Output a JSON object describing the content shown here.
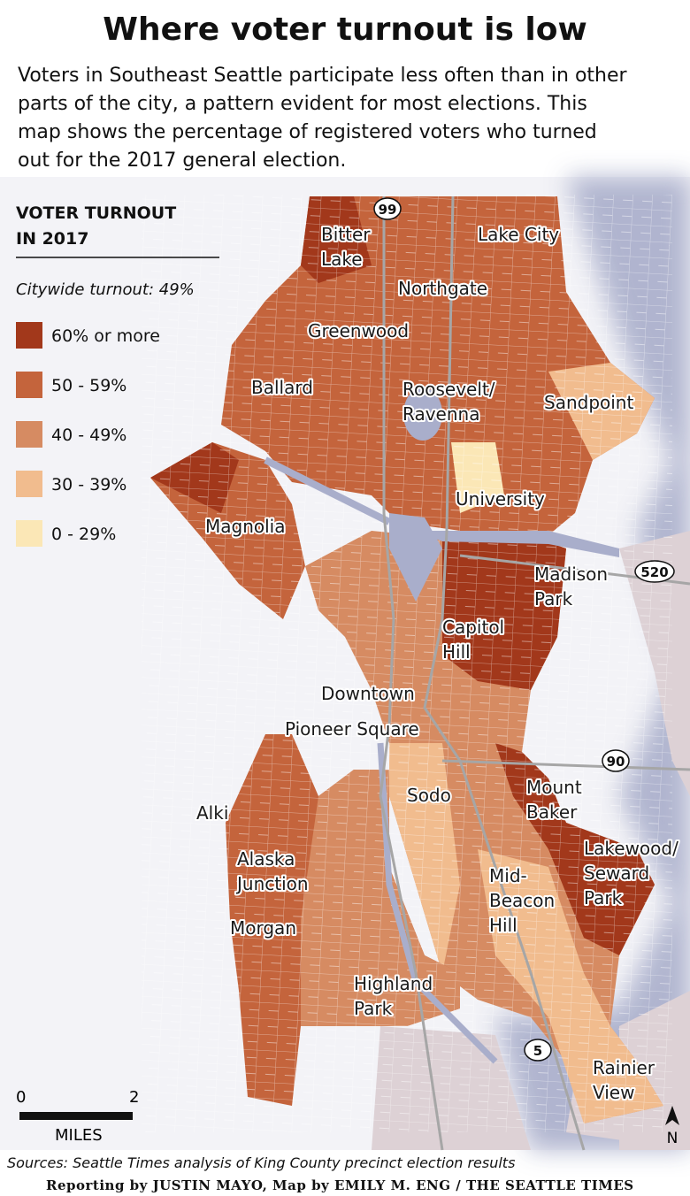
{
  "header": {
    "title": "Where voter turnout is low",
    "subtitle": [
      "Voters in Southeast Seattle participate less often than in other",
      "parts of the city, a pattern evident for most elections. This",
      "map shows the percentage of registered voters who turned",
      "out for the 2017 general election."
    ]
  },
  "legend": {
    "title": [
      "VOTER TURNOUT",
      "IN 2017"
    ],
    "note": "Citywide turnout: 49%",
    "items": [
      {
        "label": "60% or more",
        "color": "#a2381b"
      },
      {
        "label": "50 - 59%",
        "color": "#c4643c"
      },
      {
        "label": "40 - 49%",
        "color": "#d68b62"
      },
      {
        "label": "30 - 39%",
        "color": "#f1bc8e"
      },
      {
        "label": "0 - 29%",
        "color": "#fbe7b6"
      }
    ]
  },
  "map": {
    "labels": [
      {
        "lines": [
          "Bitter",
          "Lake"
        ]
      },
      {
        "lines": [
          "Lake City"
        ]
      },
      {
        "lines": [
          "Northgate"
        ]
      },
      {
        "lines": [
          "Greenwood"
        ]
      },
      {
        "lines": [
          "Ballard"
        ]
      },
      {
        "lines": [
          "Roosevelt/",
          "Ravenna"
        ]
      },
      {
        "lines": [
          "Sandpoint"
        ]
      },
      {
        "lines": [
          "University"
        ]
      },
      {
        "lines": [
          "Magnolia"
        ]
      },
      {
        "lines": [
          "Madison",
          "Park"
        ]
      },
      {
        "lines": [
          "Capitol",
          "Hill"
        ]
      },
      {
        "lines": [
          "Downtown"
        ]
      },
      {
        "lines": [
          "Pioneer Square"
        ]
      },
      {
        "lines": [
          "Sodo"
        ]
      },
      {
        "lines": [
          "Mount",
          "Baker"
        ]
      },
      {
        "lines": [
          "Alki"
        ]
      },
      {
        "lines": [
          "Alaska",
          "Junction"
        ]
      },
      {
        "lines": [
          "Lakewood/",
          "Seward",
          "Park"
        ]
      },
      {
        "lines": [
          "Morgan"
        ]
      },
      {
        "lines": [
          "Mid-",
          "Beacon",
          "Hill"
        ]
      },
      {
        "lines": [
          "Highland",
          "Park"
        ]
      },
      {
        "lines": [
          "Rainier",
          "View"
        ]
      }
    ],
    "highways": [
      "99",
      "520",
      "90",
      "5"
    ],
    "scale": {
      "start": "0",
      "end": "2",
      "unit": "MILES"
    },
    "north": "N"
  },
  "footer": {
    "sources": "Sources: Seattle Times analysis of King County precinct election results",
    "credit": "Reporting by JUSTIN MAYO, Map by EMILY M. ENG / THE SEATTLE TIMES"
  }
}
